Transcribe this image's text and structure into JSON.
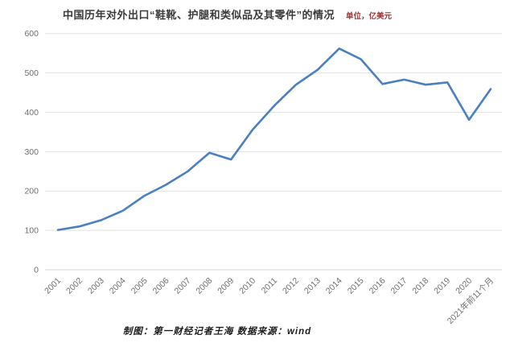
{
  "chart": {
    "title": "中国历年对外出口“鞋靴、护腿和类似品及其零件”的情况",
    "unit": "单位，亿美元",
    "footer": "制图：第一财经记者王海  数据来源：wind"
  },
  "chart_data": {
    "type": "line",
    "title": "中国历年对外出口“鞋靴、护腿和类似品及其零件”的情况",
    "unit_label": "单位，亿美元",
    "categories": [
      "2001",
      "2002",
      "2003",
      "2004",
      "2005",
      "2006",
      "2007",
      "2008",
      "2009",
      "2010",
      "2011",
      "2012",
      "2013",
      "2014",
      "2015",
      "2016",
      "2017",
      "2018",
      "2019",
      "2020",
      "2021年前11个月"
    ],
    "values": [
      101,
      110,
      126,
      150,
      188,
      216,
      250,
      297,
      280,
      356,
      417,
      470,
      508,
      562,
      535,
      472,
      483,
      470,
      476,
      381,
      459
    ],
    "xlabel": "",
    "ylabel": "",
    "ylim": [
      0,
      600
    ],
    "yticks": [
      0,
      100,
      200,
      300,
      400,
      500,
      600
    ],
    "grid": "horizontal",
    "legend": "none",
    "line_color": "#4a7fc1",
    "source_note": "制图：第一财经记者王海  数据来源：wind"
  },
  "colors": {
    "line": "#4a7fc1",
    "gridline": "#e2e2e2",
    "title_text": "#3b3b3b",
    "unit_text": "#953735",
    "tick_text": "#6e6e6e",
    "background": "#ffffff"
  }
}
